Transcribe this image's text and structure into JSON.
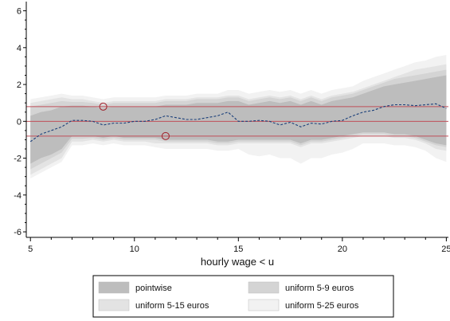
{
  "chart_data": {
    "type": "area",
    "title": "",
    "xlabel": "hourly wage < u",
    "ylabel": "",
    "xlim": [
      4.8,
      25.1
    ],
    "ylim": [
      -6.3,
      6.5
    ],
    "xticks": [
      5,
      10,
      15,
      20,
      25
    ],
    "xtick_labels": [
      "5",
      "10",
      "15",
      "20",
      "25"
    ],
    "yticks": [
      -6,
      -4,
      -2,
      0,
      2,
      4,
      6
    ],
    "ytick_labels": [
      "-6",
      "-4",
      "-2",
      "0",
      "2",
      "4",
      "6"
    ],
    "grid": false,
    "legend_position": "bottom",
    "x": [
      5,
      5.5,
      6,
      6.5,
      7,
      7.5,
      8,
      8.5,
      9,
      9.5,
      10,
      10.5,
      11,
      11.5,
      12,
      12.5,
      13,
      13.5,
      14,
      14.5,
      15,
      15.5,
      16,
      16.5,
      17,
      17.5,
      18,
      18.5,
      19,
      19.5,
      20,
      20.5,
      21,
      21.5,
      22,
      22.5,
      23,
      23.5,
      24,
      24.5,
      25
    ],
    "estimate": {
      "name": "estimate",
      "style": "dashed",
      "color": "#1a3f7a",
      "values": [
        -1.1,
        -0.7,
        -0.5,
        -0.3,
        0.05,
        0.05,
        0.0,
        -0.2,
        -0.1,
        -0.1,
        0.0,
        0.0,
        0.1,
        0.3,
        0.2,
        0.1,
        0.1,
        0.2,
        0.3,
        0.5,
        0.0,
        0.0,
        0.05,
        0.0,
        -0.2,
        -0.05,
        -0.3,
        -0.1,
        -0.15,
        0.0,
        0.05,
        0.3,
        0.5,
        0.6,
        0.8,
        0.9,
        0.9,
        0.85,
        0.9,
        0.95,
        0.7
      ]
    },
    "bands": [
      {
        "name": "uniform 5-25 euros",
        "color": "#f2f2f2",
        "lower": [
          -3.1,
          -2.8,
          -2.5,
          -2.2,
          -1.3,
          -1.3,
          -1.2,
          -1.3,
          -1.2,
          -1.3,
          -1.3,
          -1.3,
          -1.4,
          -1.5,
          -1.5,
          -1.5,
          -1.5,
          -1.5,
          -1.6,
          -1.6,
          -1.5,
          -1.8,
          -1.9,
          -1.8,
          -2.0,
          -2.0,
          -2.3,
          -2.0,
          -2.0,
          -1.8,
          -1.7,
          -1.5,
          -1.2,
          -1.2,
          -1.2,
          -1.3,
          -1.3,
          -1.4,
          -1.6,
          -2.0,
          -2.2
        ],
        "upper": [
          1.2,
          1.3,
          1.4,
          1.5,
          1.4,
          1.4,
          1.3,
          1.2,
          1.3,
          1.3,
          1.3,
          1.3,
          1.3,
          1.4,
          1.4,
          1.4,
          1.5,
          1.5,
          1.5,
          1.7,
          1.7,
          1.5,
          1.6,
          1.7,
          1.6,
          1.7,
          1.5,
          1.7,
          1.5,
          1.7,
          1.8,
          1.9,
          2.2,
          2.4,
          2.6,
          2.8,
          3.0,
          3.2,
          3.3,
          3.5,
          3.6
        ]
      },
      {
        "name": "uniform 5-15 euros",
        "color": "#e3e3e3",
        "lower": [
          -2.9,
          -2.6,
          -2.3,
          -2.0,
          -1.1,
          -1.1,
          -1.0,
          -1.1,
          -1.0,
          -1.1,
          -1.1,
          -1.1,
          -1.2,
          -1.2,
          -1.2,
          -1.2,
          -1.2,
          -1.2,
          -1.3,
          -1.3,
          -1.2,
          -1.2,
          -1.2,
          -1.2,
          -1.2,
          -1.2,
          -1.4,
          -1.2,
          -1.2,
          -1.1,
          -1.0,
          -0.9,
          -0.8,
          -0.8,
          -0.8,
          -0.9,
          -0.9,
          -1.0,
          -1.2,
          -1.5,
          -1.6
        ],
        "upper": [
          1.0,
          1.1,
          1.2,
          1.3,
          1.2,
          1.2,
          1.1,
          1.0,
          1.1,
          1.1,
          1.1,
          1.1,
          1.1,
          1.2,
          1.2,
          1.2,
          1.3,
          1.3,
          1.3,
          1.4,
          1.4,
          1.2,
          1.3,
          1.4,
          1.3,
          1.4,
          1.2,
          1.4,
          1.2,
          1.4,
          1.5,
          1.6,
          1.8,
          2.0,
          2.2,
          2.4,
          2.6,
          2.8,
          2.9,
          3.0,
          3.1
        ]
      },
      {
        "name": "uniform 5-9 euros",
        "color": "#d4d4d4",
        "lower": [
          -2.6,
          -2.3,
          -2.0,
          -1.7,
          -0.95,
          -0.95,
          -0.9,
          -1.0,
          -0.9,
          -1.0,
          -1.0,
          -1.0,
          -1.0,
          -1.1,
          -1.1,
          -1.1,
          -1.1,
          -1.1,
          -1.2,
          -1.2,
          -1.1,
          -1.1,
          -1.1,
          -1.1,
          -1.1,
          -1.1,
          -1.3,
          -1.1,
          -1.1,
          -1.0,
          -0.9,
          -0.8,
          -0.7,
          -0.7,
          -0.7,
          -0.8,
          -0.8,
          -0.9,
          -1.1,
          -1.3,
          -1.4
        ],
        "upper": [
          0.8,
          0.9,
          1.0,
          1.1,
          1.05,
          1.05,
          1.0,
          0.9,
          1.0,
          1.0,
          1.0,
          1.0,
          1.0,
          1.1,
          1.1,
          1.1,
          1.2,
          1.2,
          1.2,
          1.3,
          1.3,
          1.1,
          1.2,
          1.3,
          1.2,
          1.3,
          1.1,
          1.3,
          1.1,
          1.3,
          1.4,
          1.5,
          1.7,
          1.9,
          2.1,
          2.3,
          2.4,
          2.5,
          2.6,
          2.7,
          2.8
        ]
      },
      {
        "name": "pointwise",
        "color": "#bdbdbd",
        "lower": [
          -2.3,
          -2.0,
          -1.8,
          -1.5,
          -0.8,
          -0.8,
          -0.8,
          -0.9,
          -0.8,
          -0.9,
          -0.9,
          -0.9,
          -0.9,
          -1.0,
          -1.0,
          -1.0,
          -1.0,
          -1.0,
          -1.1,
          -1.1,
          -1.0,
          -1.0,
          -1.0,
          -1.0,
          -1.0,
          -1.0,
          -1.2,
          -1.0,
          -1.0,
          -0.9,
          -0.8,
          -0.7,
          -0.6,
          -0.6,
          -0.6,
          -0.7,
          -0.7,
          -0.8,
          -1.0,
          -1.2,
          -1.3
        ],
        "upper": [
          0.3,
          0.5,
          0.6,
          0.8,
          0.85,
          0.85,
          0.8,
          0.7,
          0.8,
          0.8,
          0.8,
          0.8,
          0.8,
          0.9,
          0.9,
          0.9,
          1.0,
          1.0,
          1.0,
          1.1,
          1.1,
          0.9,
          1.0,
          1.1,
          1.0,
          1.1,
          0.9,
          1.1,
          0.9,
          1.1,
          1.2,
          1.3,
          1.5,
          1.7,
          1.9,
          2.0,
          2.1,
          2.2,
          2.3,
          2.4,
          2.5
        ]
      }
    ],
    "reference_lines": {
      "color": "#c0505a",
      "y": [
        0.8,
        0,
        -0.8
      ]
    },
    "markers": [
      {
        "x": 8.5,
        "y": 0.8
      },
      {
        "x": 11.5,
        "y": -0.8
      }
    ],
    "legend": {
      "entries": [
        {
          "label": "pointwise",
          "color": "#bdbdbd"
        },
        {
          "label": "uniform 5-9 euros",
          "color": "#d4d4d4"
        },
        {
          "label": "uniform 5-15 euros",
          "color": "#e3e3e3"
        },
        {
          "label": "uniform 5-25 euros",
          "color": "#f2f2f2"
        }
      ]
    }
  }
}
